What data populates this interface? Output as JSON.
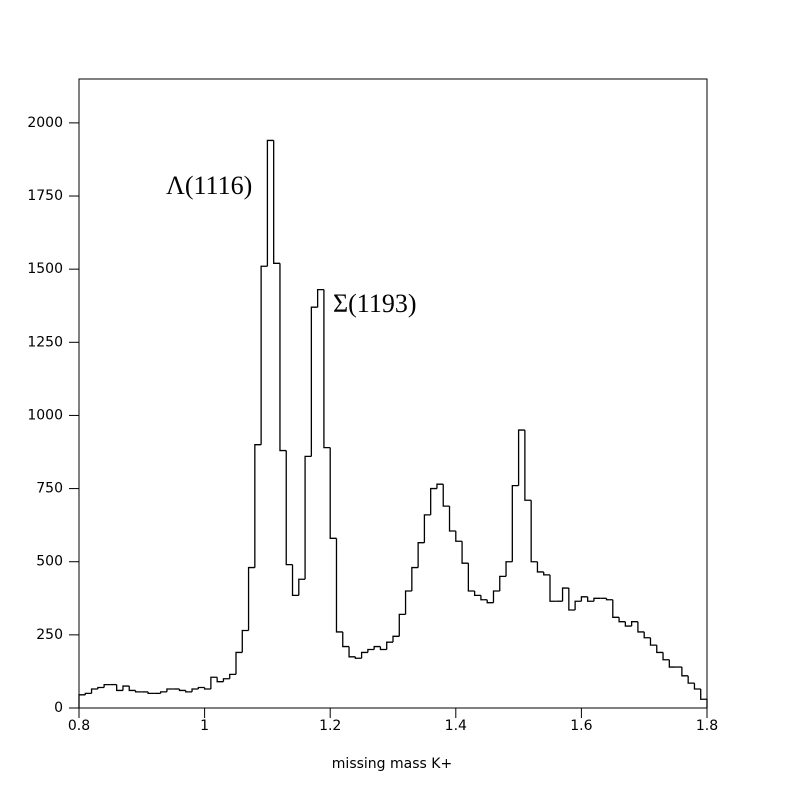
{
  "chart_data": {
    "type": "histogram",
    "x_label": "missing mass K+",
    "annotations": [
      "Λ(1116)",
      "Σ(1193)"
    ],
    "color": "#000000",
    "bins": [
      0.8,
      0.81,
      0.82,
      0.83,
      0.84,
      0.85,
      0.86,
      0.87,
      0.88,
      0.89,
      0.9,
      0.91,
      0.92,
      0.93,
      0.94,
      0.95,
      0.96,
      0.97,
      0.98,
      0.99,
      1,
      1.01,
      1.02,
      1.03,
      1.04,
      1.05,
      1.06,
      1.07,
      1.08,
      1.09,
      1.1,
      1.11,
      1.12,
      1.13,
      1.14,
      1.15,
      1.16,
      1.17,
      1.18,
      1.19,
      1.2,
      1.21,
      1.22,
      1.23,
      1.24,
      1.25,
      1.26,
      1.27,
      1.28,
      1.29,
      1.3,
      1.31,
      1.32,
      1.33,
      1.34,
      1.35,
      1.36,
      1.37,
      1.38,
      1.39,
      1.4,
      1.41,
      1.42,
      1.43,
      1.44,
      1.45,
      1.46,
      1.47,
      1.48,
      1.49,
      1.5,
      1.51,
      1.52,
      1.53,
      1.54,
      1.55,
      1.56,
      1.57,
      1.58,
      1.59,
      1.6,
      1.61,
      1.62,
      1.63,
      1.64,
      1.65,
      1.66,
      1.67,
      1.68,
      1.69,
      1.7,
      1.71,
      1.72,
      1.73,
      1.74,
      1.75,
      1.76,
      1.77,
      1.78,
      1.79,
      1.8
    ],
    "values": [
      45,
      50,
      65,
      70,
      80,
      80,
      60,
      75,
      60,
      55,
      55,
      50,
      50,
      55,
      65,
      65,
      60,
      55,
      65,
      70,
      65,
      105,
      90,
      100,
      115,
      190,
      265,
      480,
      900,
      1510,
      1940,
      1520,
      880,
      490,
      385,
      440,
      860,
      1370,
      1430,
      890,
      580,
      260,
      210,
      175,
      170,
      190,
      200,
      210,
      200,
      225,
      245,
      320,
      400,
      480,
      565,
      660,
      750,
      765,
      690,
      605,
      570,
      495,
      400,
      385,
      370,
      360,
      400,
      450,
      500,
      760,
      950,
      710,
      500,
      465,
      455,
      365,
      365,
      410,
      335,
      365,
      380,
      365,
      375,
      375,
      370,
      310,
      295,
      280,
      295,
      260,
      240,
      215,
      190,
      165,
      140,
      140,
      110,
      85,
      65,
      30
    ],
    "xlim": [
      0.8,
      1.8
    ],
    "ylim": [
      0,
      2150
    ],
    "xticks": [
      0.8,
      1,
      1.2,
      1.4,
      1.6,
      1.8
    ],
    "yticks": [
      0,
      250,
      500,
      750,
      1000,
      1250,
      1500,
      1750,
      2000
    ]
  }
}
